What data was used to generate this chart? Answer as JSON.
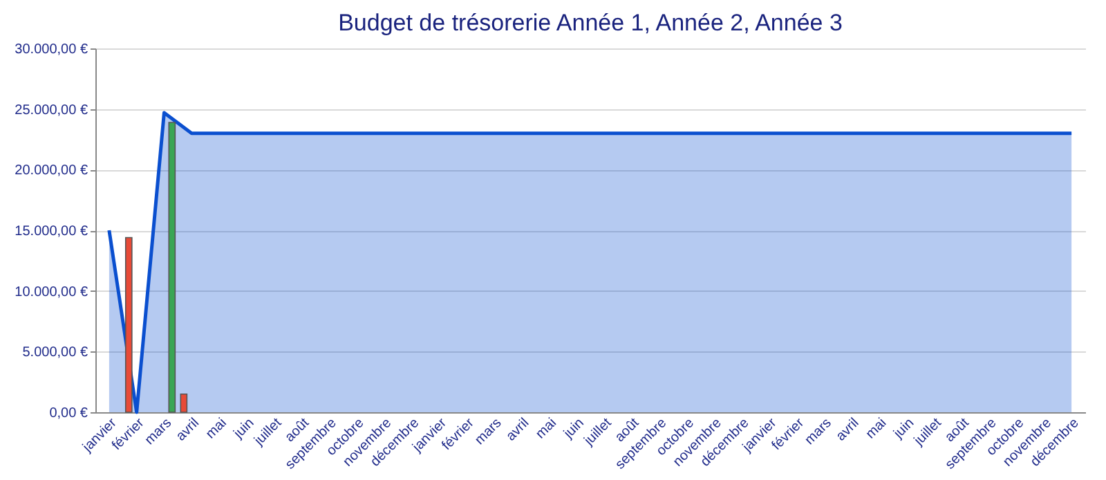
{
  "chart_data": {
    "type": "bar",
    "title": "Budget de trésorerie Année 1, Année 2, Année 3",
    "categories": [
      "janvier",
      "février",
      "mars",
      "avril",
      "mai",
      "juin",
      "juillet",
      "août",
      "septembre",
      "octobre",
      "novembre",
      "décembre",
      "janvier",
      "février",
      "mars",
      "avril",
      "mai",
      "juin",
      "juillet",
      "août",
      "septembre",
      "octobre",
      "novembre",
      "décembre",
      "janvier",
      "février",
      "mars",
      "avril",
      "mai",
      "juin",
      "juillet",
      "août",
      "septembre",
      "octobre",
      "novembre",
      "décembre"
    ],
    "series": [
      {
        "type": "area",
        "color": "#0a4fcf",
        "values": [
          15000,
          0,
          24700,
          23000,
          23000,
          23000,
          23000,
          23000,
          23000,
          23000,
          23000,
          23000,
          23000,
          23000,
          23000,
          23000,
          23000,
          23000,
          23000,
          23000,
          23000,
          23000,
          23000,
          23000,
          23000,
          23000,
          23000,
          23000,
          23000,
          23000,
          23000,
          23000,
          23000,
          23000,
          23000,
          23000
        ]
      },
      {
        "color": "#e84a37",
        "values": [
          null,
          14400,
          null,
          1500,
          null,
          null,
          null,
          null,
          null,
          null,
          null,
          null,
          null,
          null,
          null,
          null,
          null,
          null,
          null,
          null,
          null,
          null,
          null,
          null,
          null,
          null,
          null,
          null,
          null,
          null,
          null,
          null,
          null,
          null,
          null,
          null
        ]
      },
      {
        "color": "#3aa655",
        "values": [
          null,
          null,
          23900,
          null,
          null,
          null,
          null,
          null,
          null,
          null,
          null,
          null,
          null,
          null,
          null,
          null,
          null,
          null,
          null,
          null,
          null,
          null,
          null,
          null,
          null,
          null,
          null,
          null,
          null,
          null,
          null,
          null,
          null,
          null,
          null,
          null
        ]
      }
    ],
    "ylim": [
      0,
      30000
    ],
    "yticks": [
      {
        "value": 0,
        "label": "0,00 €"
      },
      {
        "value": 5000,
        "label": "5.000,00 €"
      },
      {
        "value": 10000,
        "label": "10.000,00 €"
      },
      {
        "value": 15000,
        "label": "15.000,00 €"
      },
      {
        "value": 20000,
        "label": "20.000,00 €"
      },
      {
        "value": 25000,
        "label": "25.000,00 €"
      },
      {
        "value": 30000,
        "label": "30.000,00 €"
      }
    ],
    "grid": "y"
  }
}
